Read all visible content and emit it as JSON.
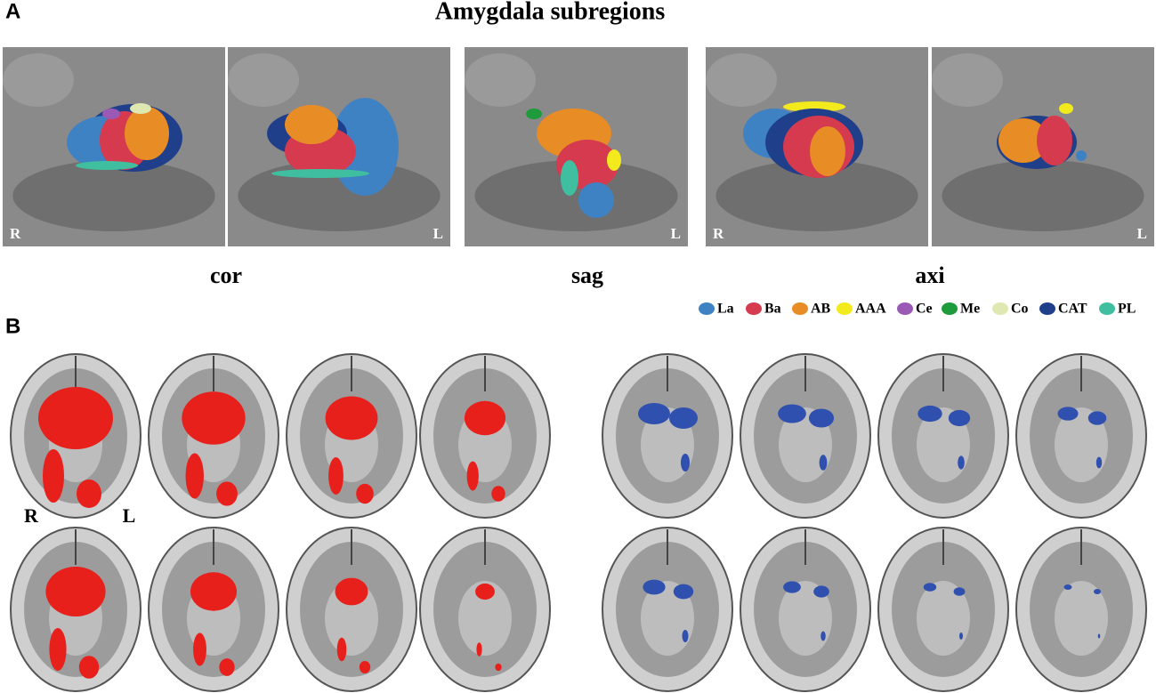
{
  "panel_a": {
    "label": "A",
    "title": "Amygdala subregions",
    "views": [
      {
        "label": "cor",
        "corner_labels": [
          "R",
          "L"
        ]
      },
      {
        "label": "sag",
        "corner_labels": [
          "L"
        ]
      },
      {
        "label": "axi",
        "corner_labels": [
          "R",
          "L"
        ]
      }
    ],
    "legend": [
      {
        "name": "La",
        "color": "#3f82c4"
      },
      {
        "name": "Ba",
        "color": "#d63a4f"
      },
      {
        "name": "AB",
        "color": "#e88c25"
      },
      {
        "name": "AAA",
        "color": "#f2ea1c"
      },
      {
        "name": "Ce",
        "color": "#9b59b6"
      },
      {
        "name": "Me",
        "color": "#1e9c3c"
      },
      {
        "name": "Co",
        "color": "#dfe8b0"
      },
      {
        "name": "CAT",
        "color": "#1f3f8a"
      },
      {
        "name": "PL",
        "color": "#3fbf9f"
      }
    ]
  },
  "panel_b": {
    "label": "B",
    "side_labels": [
      "R",
      "L"
    ],
    "colors": [
      "#e8201c",
      "#3050b0"
    ]
  }
}
